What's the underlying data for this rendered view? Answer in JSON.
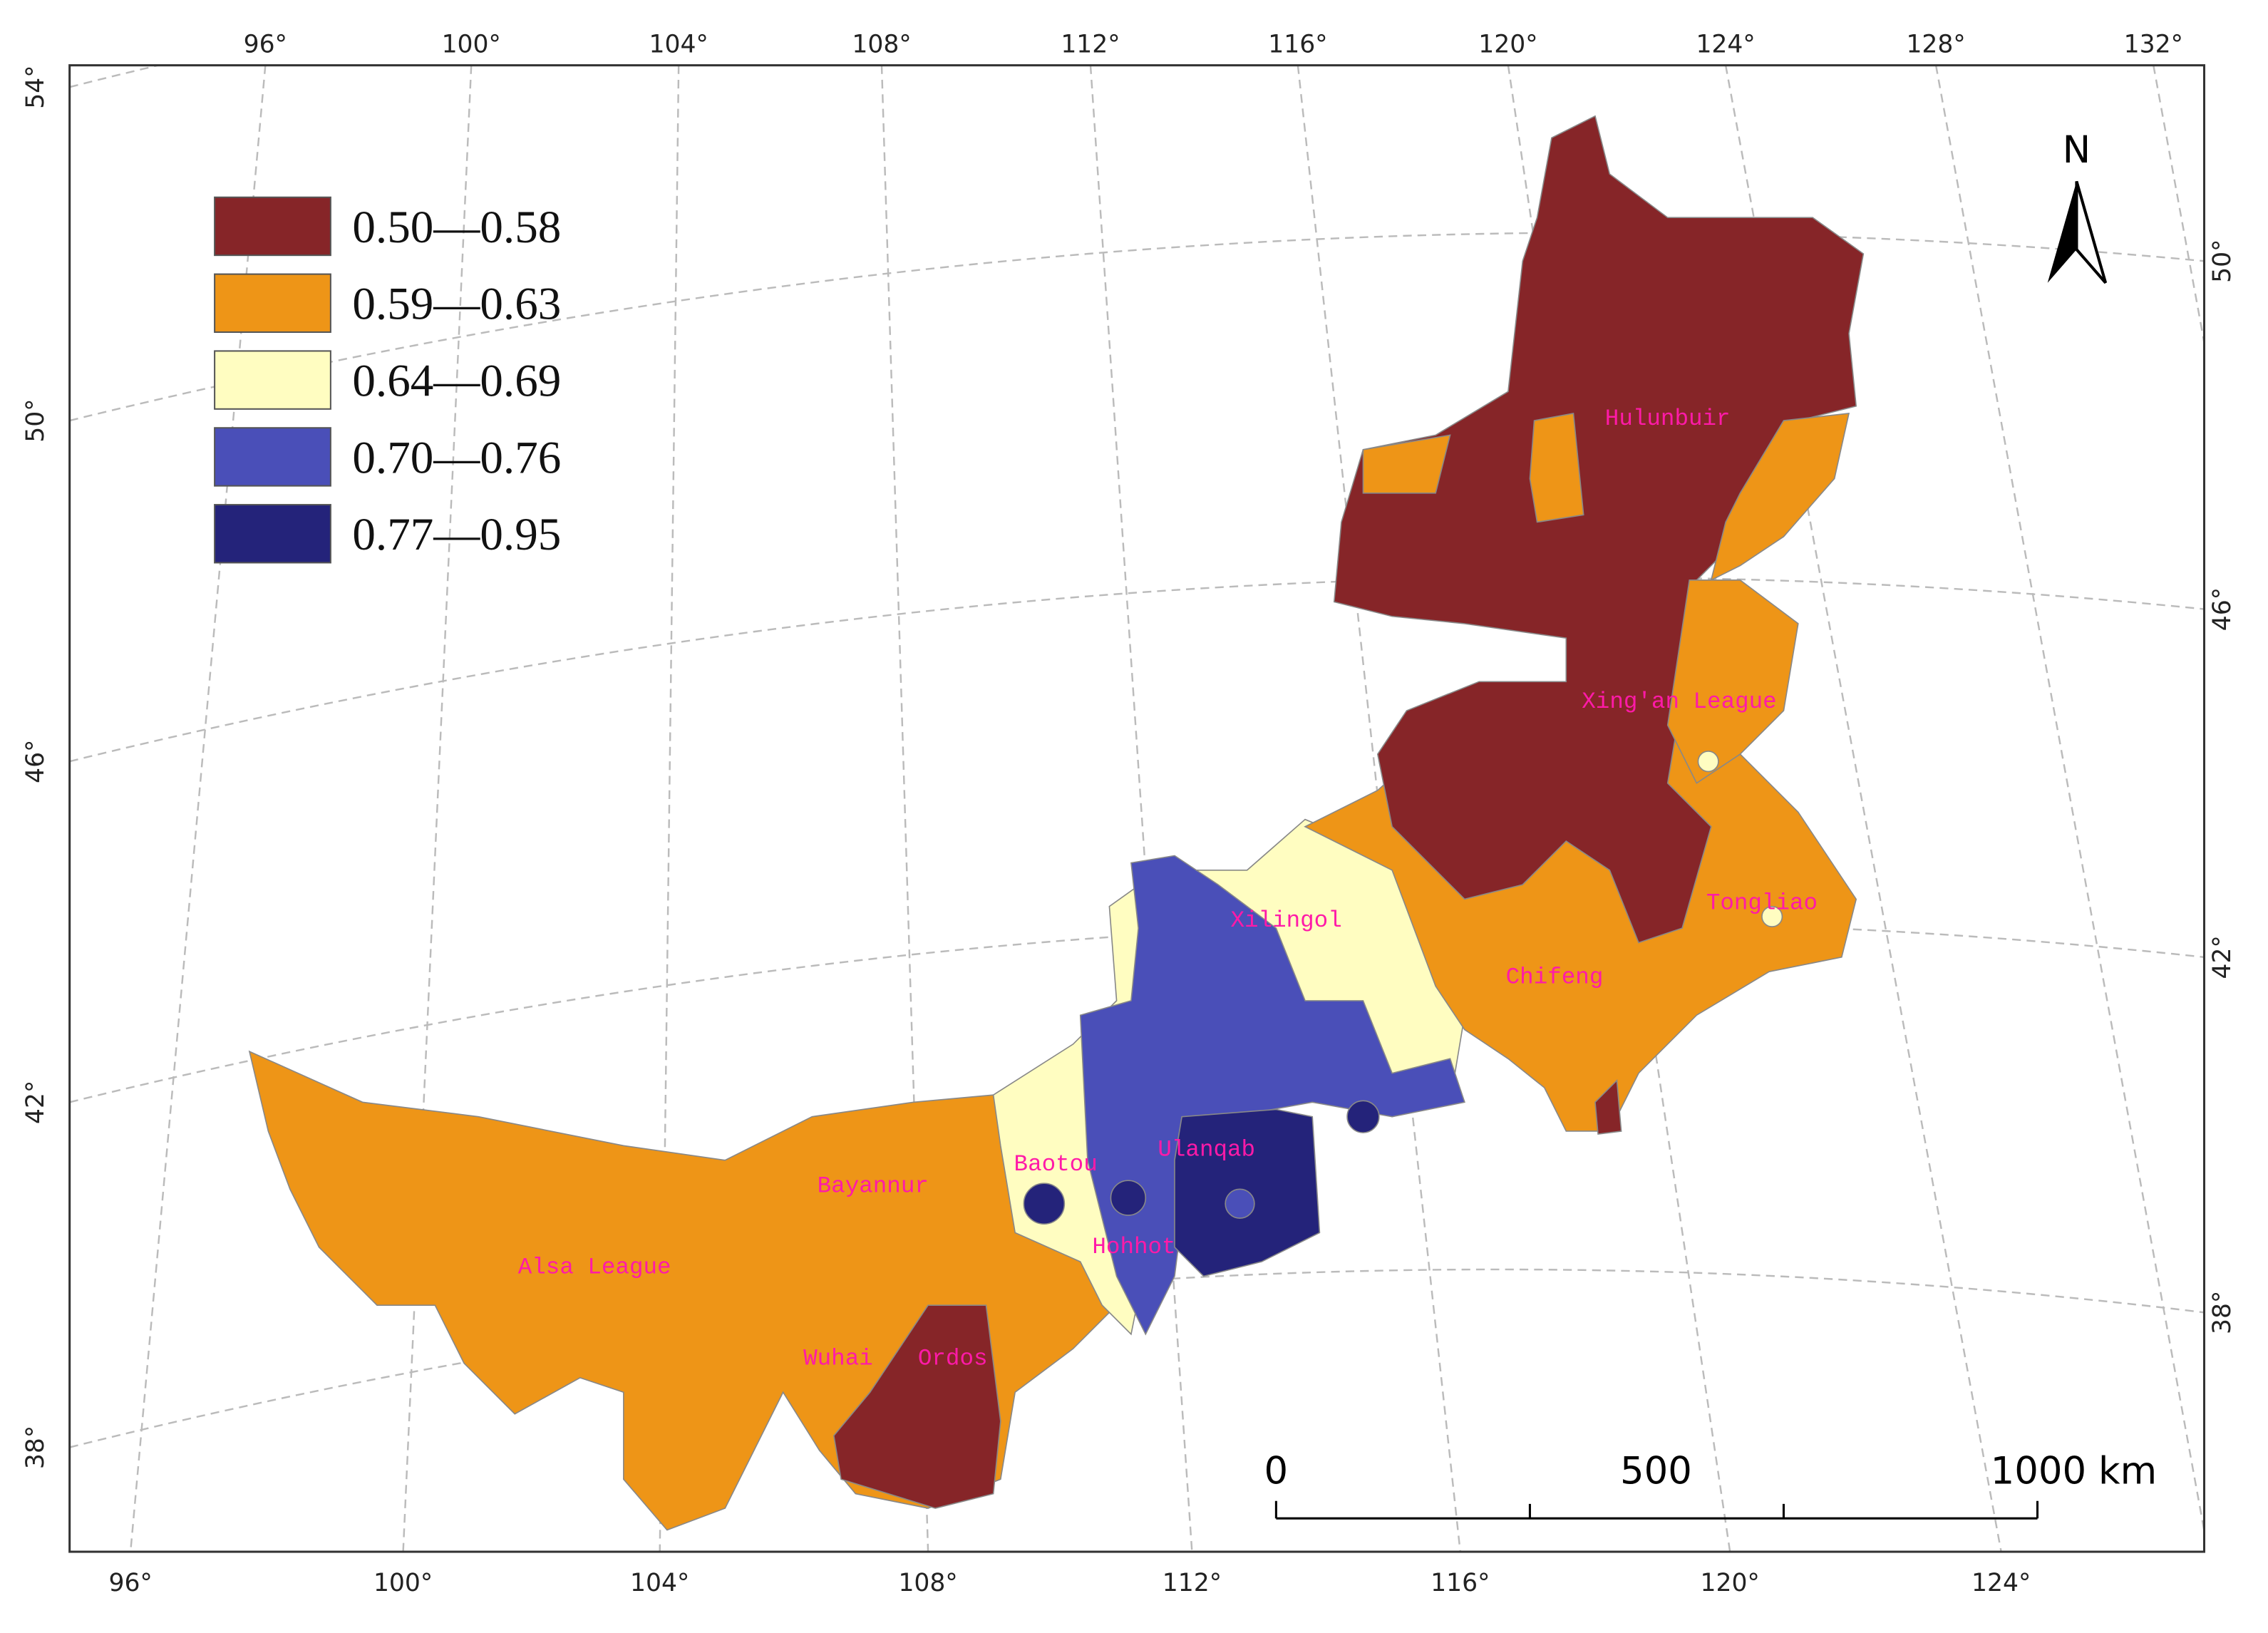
{
  "legend": [
    {
      "label": "0.50—0.58",
      "color": "#862528"
    },
    {
      "label": "0.59—0.63",
      "color": "#ee9517"
    },
    {
      "label": "0.64—0.69",
      "color": "#fffdc1"
    },
    {
      "label": "0.70—0.76",
      "color": "#4a4fb8"
    },
    {
      "label": "0.77—0.95",
      "color": "#24237a"
    }
  ],
  "places": [
    "Hulunbuir",
    "Xing'an League",
    "Xilingol",
    "Tongliao",
    "Chifeng",
    "Baotou",
    "Ulanqab",
    "Bayannur",
    "Hohhot",
    "Alsa League",
    "Wuhai",
    "Ordos"
  ],
  "graticule": {
    "top": [
      "96°",
      "100°",
      "104°",
      "108°",
      "112°",
      "116°",
      "120°",
      "124°",
      "128°",
      "132°"
    ],
    "bottom": [
      "96°",
      "100°",
      "104°",
      "108°",
      "112°",
      "116°",
      "120°",
      "124°"
    ],
    "left": [
      "54°",
      "50°",
      "46°",
      "42°",
      "38°"
    ],
    "right": [
      "50°",
      "46°",
      "42°",
      "38°"
    ]
  },
  "scale_bar": [
    "0",
    "500",
    "1000 km"
  ],
  "north": "N"
}
